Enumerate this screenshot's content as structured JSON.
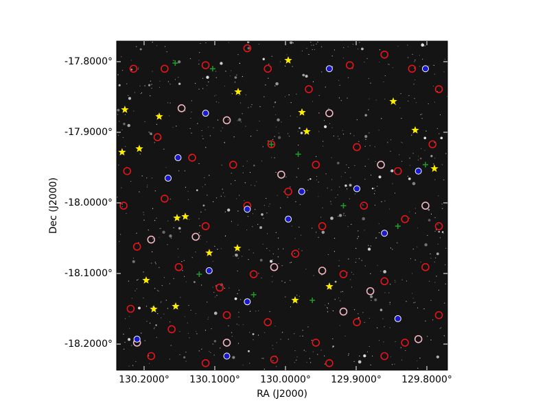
{
  "chart_data": {
    "type": "scatter",
    "xlabel": "RA (J2000)",
    "ylabel": "Dec (J2000)",
    "xlim": [
      130.2388,
      129.7709
    ],
    "ylim": [
      -18.2369,
      -17.7709
    ],
    "xticks": [
      {
        "value": 130.2,
        "label": "130.2000°"
      },
      {
        "value": 130.1,
        "label": "130.1000°"
      },
      {
        "value": 130.0,
        "label": "130.0000°"
      },
      {
        "value": 129.9,
        "label": "129.9000°"
      },
      {
        "value": 129.8,
        "label": "129.8000°"
      }
    ],
    "yticks": [
      {
        "value": -17.8,
        "label": "-17.8000°"
      },
      {
        "value": -17.9,
        "label": "-17.9000°"
      },
      {
        "value": -18.0,
        "label": "-18.0000°"
      },
      {
        "value": -18.1,
        "label": "-18.1000°"
      },
      {
        "value": -18.2,
        "label": "-18.2000°"
      }
    ],
    "series": [
      {
        "color": "#e8141a",
        "marker": "ring",
        "x": [
          130.215,
          130.171,
          130.113,
          130.054,
          130.025,
          129.967,
          129.909,
          129.86,
          129.821,
          129.783,
          130.224,
          130.181,
          130.132,
          130.074,
          130.02,
          129.957,
          129.899,
          129.841,
          129.792,
          130.229,
          130.171,
          130.113,
          130.054,
          129.996,
          129.948,
          129.889,
          129.831,
          129.783,
          130.21,
          130.151,
          130.093,
          130.045,
          129.986,
          129.918,
          129.86,
          129.802,
          130.219,
          130.161,
          130.083,
          130.025,
          129.957,
          129.899,
          129.831,
          129.783,
          130.19,
          130.113,
          130.016,
          129.938,
          129.86
        ],
        "y": [
          -17.81,
          -17.81,
          -17.805,
          -17.781,
          -17.81,
          -17.839,
          -17.805,
          -17.79,
          -17.81,
          -17.839,
          -17.955,
          -17.907,
          -17.936,
          -17.946,
          -17.917,
          -17.946,
          -17.921,
          -17.955,
          -17.917,
          -18.004,
          -17.994,
          -18.033,
          -18.004,
          -17.984,
          -18.033,
          -18.004,
          -18.023,
          -18.033,
          -18.062,
          -18.091,
          -18.12,
          -18.101,
          -18.072,
          -18.101,
          -18.111,
          -18.091,
          -18.15,
          -18.179,
          -18.159,
          -18.169,
          -18.198,
          -18.169,
          -18.198,
          -18.159,
          -18.217,
          -18.227,
          -18.222,
          -18.227,
          -18.217
        ]
      },
      {
        "color": "#f4b8c0",
        "marker": "ring",
        "x": [
          130.147,
          130.083,
          130.006,
          129.865,
          129.938,
          130.19,
          130.127,
          129.88,
          129.802,
          130.016,
          130.083,
          130.21,
          129.812,
          129.918,
          129.948
        ],
        "y": [
          -17.866,
          -17.883,
          -17.96,
          -17.946,
          -17.873,
          -18.052,
          -18.048,
          -18.125,
          -18.004,
          -18.091,
          -18.198,
          -18.198,
          -18.193,
          -18.154,
          -18.096
        ]
      },
      {
        "color": "#1a1acc",
        "marker": "dot",
        "x": [
          130.113,
          130.166,
          130.054,
          129.996,
          129.899,
          129.86,
          129.812,
          129.802,
          129.938,
          130.108,
          130.054,
          130.21,
          129.841,
          130.083,
          129.977,
          130.152
        ],
        "y": [
          -17.873,
          -17.965,
          -18.009,
          -18.023,
          -17.98,
          -18.043,
          -17.955,
          -17.81,
          -17.81,
          -18.096,
          -18.14,
          -18.193,
          -18.164,
          -18.217,
          -17.984,
          -17.936
        ]
      },
      {
        "color": "#1f9a2a",
        "marker": "cross",
        "x": [
          130.156,
          130.103,
          130.02,
          129.982,
          129.802,
          129.918,
          129.962,
          130.045,
          129.841,
          130.122
        ],
        "y": [
          -17.802,
          -17.81,
          -17.917,
          -17.931,
          -17.946,
          -18.004,
          -18.138,
          -18.13,
          -18.033,
          -18.101
        ]
      },
      {
        "color": "#ffee00",
        "marker": "star",
        "x": [
          130.2272,
          130.1786,
          130.2068,
          130.2311,
          130.1534,
          130.1417,
          130.1078,
          130.068,
          130.1971,
          130.1864,
          130.1553,
          129.9864,
          129.9379,
          129.9699,
          129.9767,
          129.9961,
          130.067,
          129.8476,
          129.8165,
          129.7893
        ],
        "y": [
          -17.868,
          -17.8777,
          -17.9233,
          -17.9282,
          -18.0214,
          -18.0194,
          -18.0709,
          -18.0641,
          -18.1097,
          -18.1505,
          -18.1466,
          -18.1379,
          -18.1184,
          -17.899,
          -17.8718,
          -17.7981,
          -17.8427,
          -17.8563,
          -17.8971,
          -17.9515
        ]
      }
    ]
  }
}
